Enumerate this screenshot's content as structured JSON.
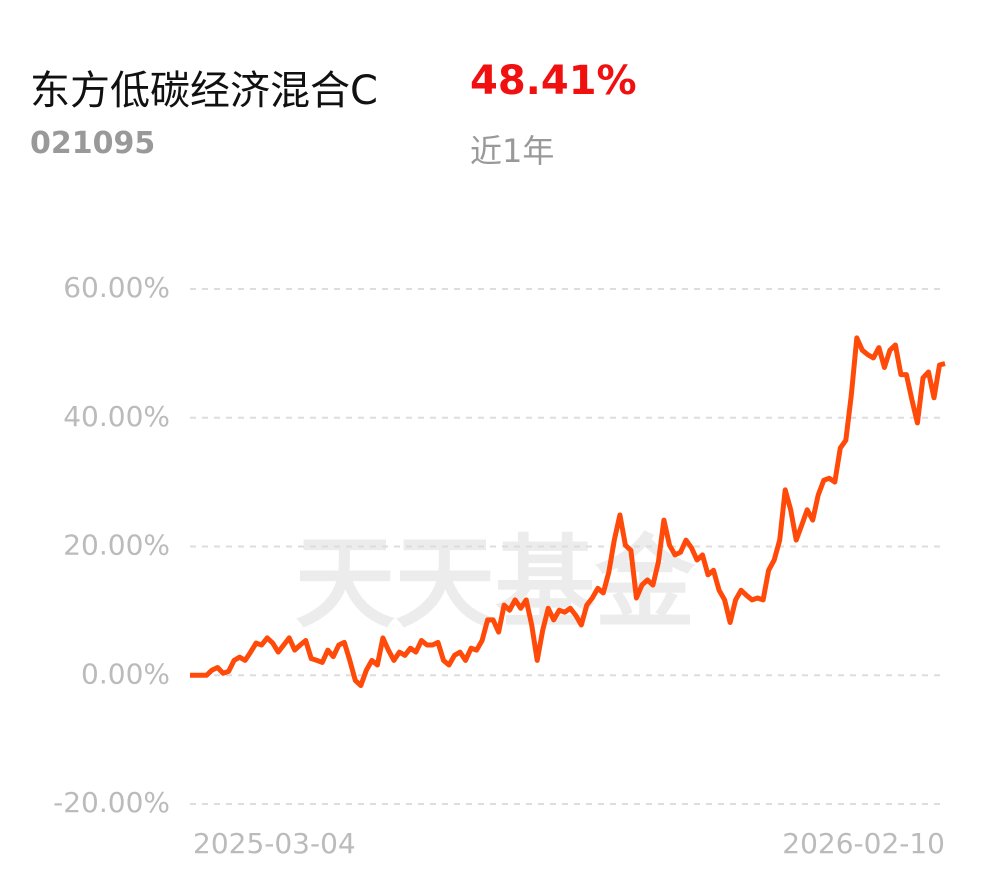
{
  "header": {
    "title": "东方低碳经济混合C",
    "code": "021095",
    "return": "48.41%",
    "period": "近1年"
  },
  "chart_data": {
    "type": "line",
    "watermark": "天天基金",
    "categories": [
      "2025-03-04",
      null,
      null,
      null,
      null,
      null,
      null,
      null,
      null,
      null,
      null,
      null,
      null,
      null,
      null,
      null,
      null,
      null,
      null,
      null,
      null,
      null,
      null,
      null,
      null,
      null,
      null,
      null,
      null,
      null,
      null,
      null,
      null,
      null,
      null,
      null,
      null,
      null,
      null,
      null,
      null,
      null,
      null,
      null,
      null,
      null,
      null,
      null,
      null,
      null,
      null,
      null,
      null,
      null,
      null,
      null,
      null,
      null,
      null,
      null,
      null,
      null,
      null,
      null,
      null,
      null,
      null,
      null,
      null,
      null,
      null,
      null,
      null,
      null,
      null,
      null,
      null,
      null,
      null,
      null,
      null,
      null,
      null,
      null,
      null,
      null,
      null,
      null,
      null,
      null,
      null,
      null,
      null,
      null,
      null,
      null,
      null,
      null,
      null,
      null,
      null,
      null,
      null,
      null,
      null,
      null,
      null,
      null,
      null,
      null,
      null,
      null,
      null,
      null,
      null,
      null,
      null,
      null,
      null,
      null,
      null,
      null,
      null,
      null,
      null,
      null,
      null,
      null,
      null,
      null,
      null,
      null,
      null,
      null,
      null,
      null,
      null,
      "2026-02-10"
    ],
    "series": [
      {
        "color": "#ff4a0a",
        "values": [
          0,
          0,
          0,
          0,
          0.8,
          1.2,
          0.3,
          0.6,
          2.3,
          2.8,
          2.3,
          3.6,
          5.0,
          4.7,
          5.8,
          5.0,
          3.6,
          4.7,
          5.8,
          3.9,
          4.7,
          5.4,
          2.6,
          2.3,
          2.0,
          3.9,
          2.9,
          4.7,
          5.1,
          2.3,
          -0.8,
          -1.6,
          0.8,
          2.3,
          1.6,
          5.8,
          3.9,
          2.3,
          3.6,
          3.1,
          4.2,
          3.6,
          5.4,
          4.7,
          4.7,
          5.1,
          2.3,
          1.6,
          3.1,
          3.6,
          2.3,
          4.2,
          3.9,
          5.4,
          8.6,
          8.6,
          6.7,
          10.9,
          10.1,
          11.7,
          10.4,
          11.7,
          7.8,
          2.3,
          7.0,
          10.4,
          8.6,
          10.1,
          9.8,
          10.4,
          9.3,
          7.8,
          10.9,
          12.0,
          13.5,
          12.8,
          16.0,
          21.0,
          24.9,
          20.2,
          19.4,
          12.0,
          14.0,
          14.8,
          14.0,
          17.6,
          24.1,
          20.2,
          18.7,
          19.1,
          21.0,
          19.8,
          17.9,
          18.7,
          15.6,
          16.3,
          13.2,
          11.7,
          8.2,
          11.7,
          13.2,
          12.4,
          11.7,
          12.0,
          11.7,
          16.3,
          17.9,
          21.0,
          28.8,
          25.7,
          21.0,
          23.3,
          25.7,
          24.1,
          28.0,
          30.3,
          30.6,
          30.0,
          35.3,
          36.5,
          43.5,
          52.4,
          50.5,
          49.8,
          49.3,
          50.9,
          47.8,
          50.5,
          51.3,
          46.7,
          46.7,
          42.8,
          39.2,
          46.2,
          47.1,
          43.1,
          48.2,
          48.41
        ]
      }
    ],
    "ylim": [
      -20,
      60
    ],
    "yticks": [
      {
        "value": -20,
        "label": "-20.00%"
      },
      {
        "value": 0,
        "label": "0.00%"
      },
      {
        "value": 20,
        "label": "20.00%"
      },
      {
        "value": 40,
        "label": "40.00%"
      },
      {
        "value": 60,
        "label": "60.00%"
      }
    ],
    "grid": true
  }
}
